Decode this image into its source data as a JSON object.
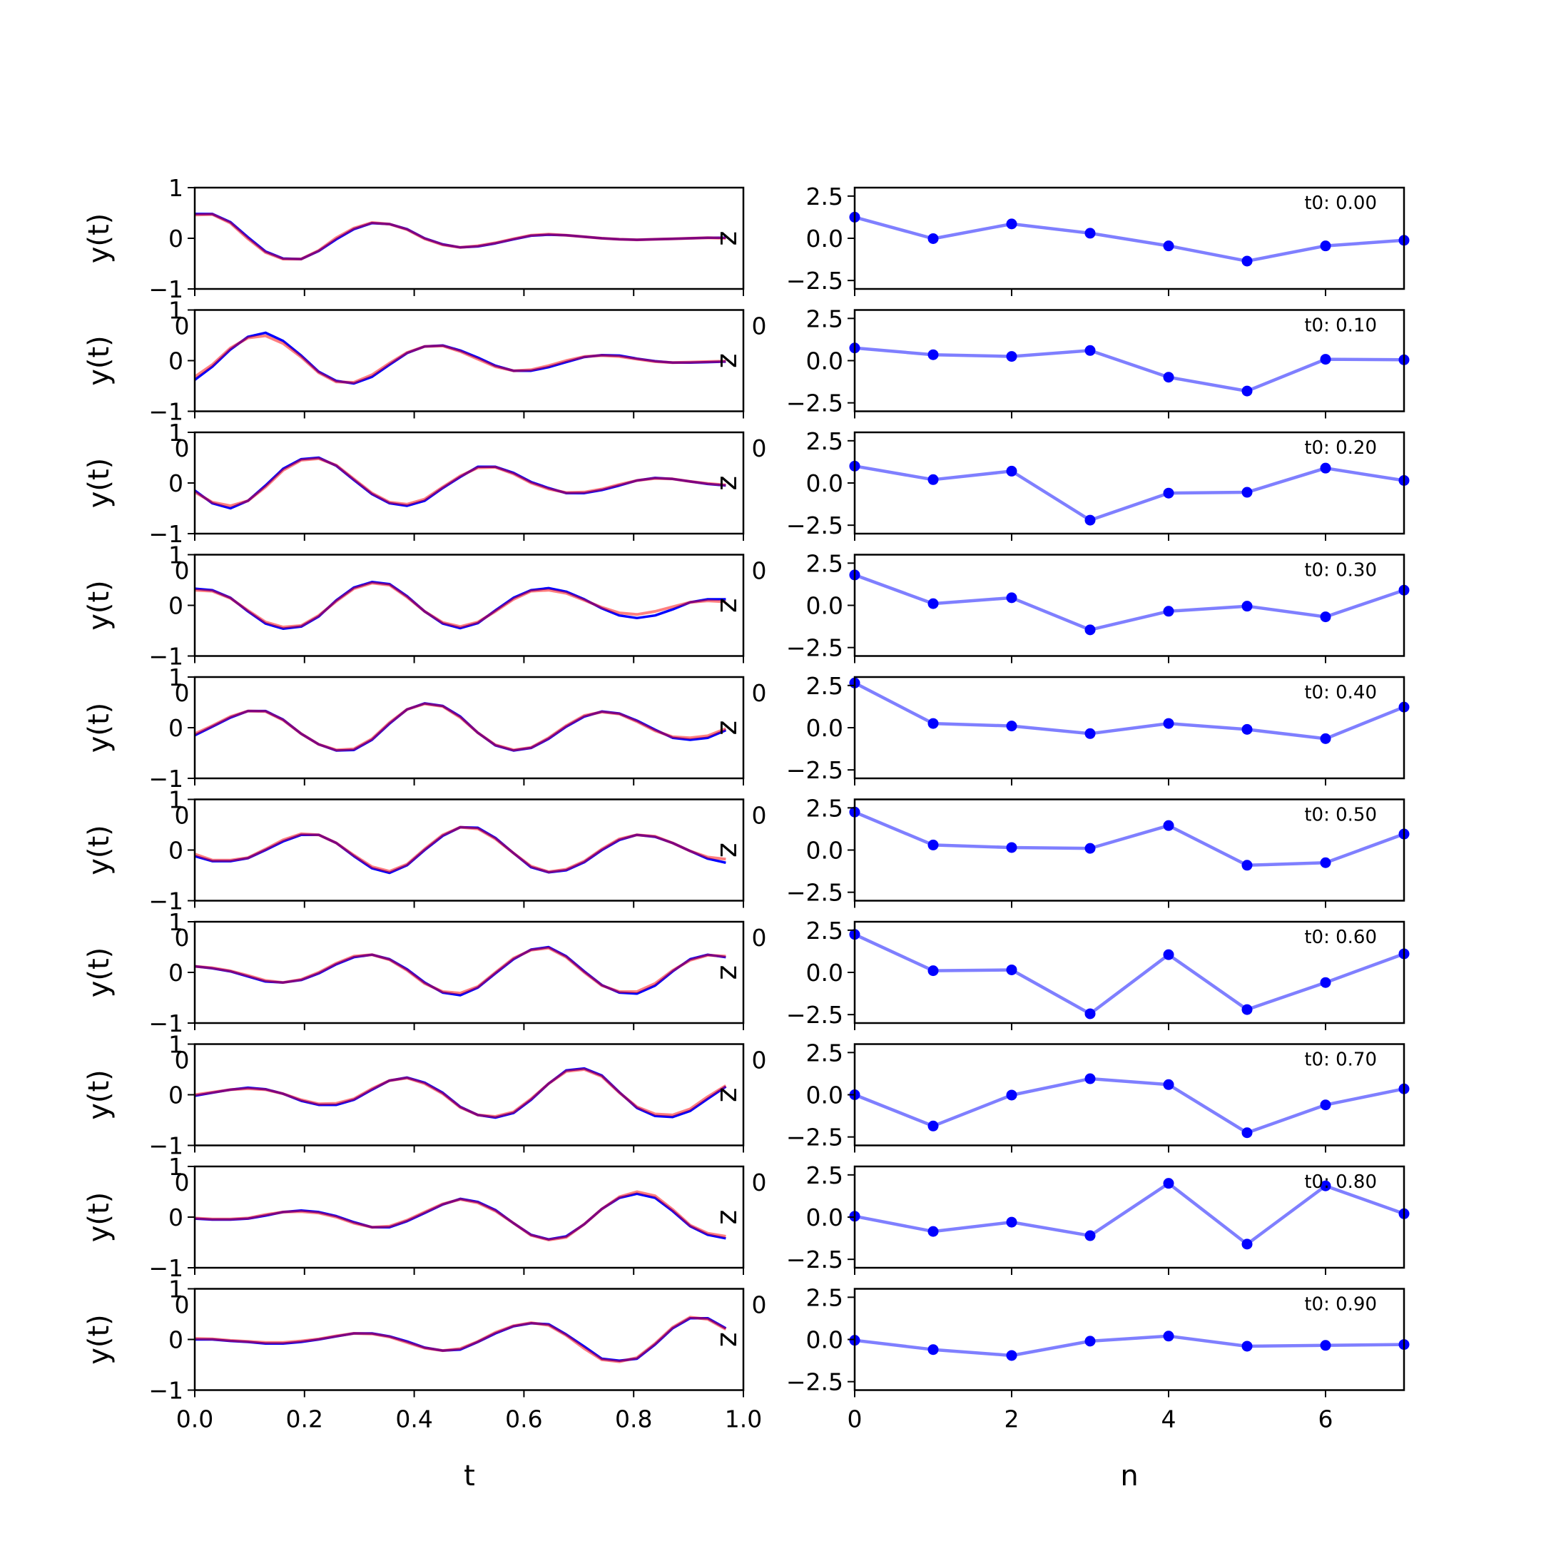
{
  "chart_data": {
    "type": "line",
    "colors": {
      "signal_a": "#0000ff",
      "signal_b": "#ff0000",
      "coeff": "#0000ff",
      "axes": "#000000"
    },
    "left_panels": {
      "ylabel": "y(t)",
      "xlabel": "t",
      "side_label": "z",
      "xlim": [
        0.0,
        1.0
      ],
      "ylim": [
        -1,
        1
      ],
      "xticks": [
        "0.0",
        "0.2",
        "0.4",
        "0.6",
        "0.8",
        "1.0"
      ],
      "yticks": [
        "−1",
        "0",
        "1"
      ],
      "stray_tick_label": "0",
      "t": [
        0.0,
        0.032,
        0.065,
        0.097,
        0.129,
        0.161,
        0.194,
        0.226,
        0.258,
        0.29,
        0.323,
        0.355,
        0.387,
        0.419,
        0.452,
        0.484,
        0.516,
        0.548,
        0.581,
        0.613,
        0.645,
        0.677,
        0.71,
        0.742,
        0.774,
        0.806,
        0.839,
        0.871,
        0.903,
        0.935,
        0.968
      ],
      "series": [
        {
          "blue": [
            0.48,
            0.48,
            0.32,
            0.02,
            -0.26,
            -0.4,
            -0.41,
            -0.25,
            -0.02,
            0.18,
            0.3,
            0.28,
            0.18,
            0.0,
            -0.12,
            -0.18,
            -0.16,
            -0.1,
            -0.02,
            0.05,
            0.07,
            0.06,
            0.03,
            0.0,
            -0.02,
            -0.03,
            -0.02,
            -0.01,
            0.0,
            0.01,
            0.01
          ],
          "red": [
            0.46,
            0.47,
            0.3,
            -0.01,
            -0.28,
            -0.41,
            -0.41,
            -0.24,
            0.01,
            0.2,
            0.31,
            0.28,
            0.17,
            -0.01,
            -0.13,
            -0.18,
            -0.15,
            -0.09,
            -0.01,
            0.06,
            0.08,
            0.06,
            0.03,
            0.0,
            -0.02,
            -0.03,
            -0.02,
            -0.01,
            0.0,
            0.01,
            0.0
          ]
        },
        {
          "blue": [
            -0.38,
            -0.12,
            0.22,
            0.47,
            0.55,
            0.39,
            0.1,
            -0.22,
            -0.4,
            -0.45,
            -0.32,
            -0.08,
            0.15,
            0.28,
            0.3,
            0.2,
            0.06,
            -0.1,
            -0.2,
            -0.2,
            -0.13,
            -0.03,
            0.07,
            0.11,
            0.1,
            0.04,
            -0.01,
            -0.04,
            -0.04,
            -0.03,
            -0.02
          ],
          "red": [
            -0.32,
            -0.08,
            0.25,
            0.45,
            0.49,
            0.34,
            0.07,
            -0.24,
            -0.42,
            -0.43,
            -0.28,
            -0.05,
            0.16,
            0.28,
            0.29,
            0.18,
            0.03,
            -0.12,
            -0.2,
            -0.18,
            -0.1,
            0.0,
            0.08,
            0.1,
            0.08,
            0.03,
            -0.02,
            -0.04,
            -0.03,
            -0.02,
            -0.01
          ]
        },
        {
          "blue": [
            -0.15,
            -0.4,
            -0.5,
            -0.35,
            -0.05,
            0.28,
            0.47,
            0.5,
            0.34,
            0.06,
            -0.22,
            -0.4,
            -0.45,
            -0.35,
            -0.1,
            0.12,
            0.32,
            0.32,
            0.2,
            0.02,
            -0.1,
            -0.2,
            -0.2,
            -0.14,
            -0.05,
            0.05,
            0.1,
            0.08,
            0.03,
            -0.02,
            -0.05
          ],
          "red": [
            -0.18,
            -0.38,
            -0.45,
            -0.35,
            -0.08,
            0.25,
            0.45,
            0.48,
            0.35,
            0.08,
            -0.2,
            -0.38,
            -0.42,
            -0.32,
            -0.08,
            0.14,
            0.3,
            0.31,
            0.18,
            0.0,
            -0.12,
            -0.19,
            -0.18,
            -0.12,
            -0.03,
            0.05,
            0.09,
            0.08,
            0.03,
            -0.01,
            -0.04
          ]
        },
        {
          "blue": [
            0.33,
            0.3,
            0.15,
            -0.12,
            -0.36,
            -0.46,
            -0.42,
            -0.22,
            0.1,
            0.35,
            0.46,
            0.42,
            0.18,
            -0.12,
            -0.36,
            -0.45,
            -0.35,
            -0.1,
            0.15,
            0.3,
            0.34,
            0.27,
            0.12,
            -0.06,
            -0.2,
            -0.25,
            -0.2,
            -0.08,
            0.06,
            0.12,
            0.12
          ],
          "red": [
            0.3,
            0.28,
            0.14,
            -0.1,
            -0.33,
            -0.43,
            -0.4,
            -0.2,
            0.08,
            0.33,
            0.44,
            0.4,
            0.16,
            -0.12,
            -0.34,
            -0.42,
            -0.33,
            -0.12,
            0.12,
            0.28,
            0.3,
            0.24,
            0.1,
            -0.04,
            -0.15,
            -0.18,
            -0.12,
            -0.03,
            0.06,
            0.09,
            0.07
          ]
        },
        {
          "blue": [
            -0.15,
            0.02,
            0.2,
            0.33,
            0.33,
            0.16,
            -0.12,
            -0.33,
            -0.45,
            -0.44,
            -0.24,
            0.08,
            0.36,
            0.48,
            0.43,
            0.22,
            -0.1,
            -0.35,
            -0.45,
            -0.4,
            -0.22,
            0.02,
            0.22,
            0.32,
            0.28,
            0.14,
            -0.04,
            -0.2,
            -0.24,
            -0.2,
            -0.05
          ],
          "red": [
            -0.12,
            0.04,
            0.22,
            0.33,
            0.32,
            0.15,
            -0.12,
            -0.33,
            -0.44,
            -0.42,
            -0.22,
            0.1,
            0.36,
            0.47,
            0.42,
            0.2,
            -0.1,
            -0.34,
            -0.44,
            -0.39,
            -0.2,
            0.04,
            0.24,
            0.31,
            0.27,
            0.12,
            -0.06,
            -0.18,
            -0.2,
            -0.16,
            -0.02
          ]
        },
        {
          "blue": [
            -0.12,
            -0.22,
            -0.22,
            -0.16,
            0.0,
            0.17,
            0.3,
            0.3,
            0.14,
            -0.12,
            -0.36,
            -0.45,
            -0.3,
            0.0,
            0.28,
            0.45,
            0.44,
            0.24,
            -0.06,
            -0.34,
            -0.44,
            -0.4,
            -0.24,
            0.0,
            0.2,
            0.3,
            0.26,
            0.14,
            -0.02,
            -0.17,
            -0.25
          ],
          "red": [
            -0.08,
            -0.2,
            -0.2,
            -0.15,
            0.02,
            0.2,
            0.32,
            0.3,
            0.14,
            -0.1,
            -0.33,
            -0.42,
            -0.28,
            0.02,
            0.3,
            0.45,
            0.42,
            0.22,
            -0.06,
            -0.32,
            -0.43,
            -0.38,
            -0.22,
            0.02,
            0.22,
            0.3,
            0.27,
            0.14,
            -0.02,
            -0.14,
            -0.18
          ]
        },
        {
          "blue": [
            0.12,
            0.08,
            0.02,
            -0.08,
            -0.18,
            -0.2,
            -0.15,
            -0.02,
            0.16,
            0.3,
            0.35,
            0.26,
            0.06,
            -0.2,
            -0.4,
            -0.45,
            -0.3,
            -0.02,
            0.26,
            0.45,
            0.5,
            0.32,
            0.02,
            -0.25,
            -0.4,
            -0.42,
            -0.26,
            0.02,
            0.26,
            0.35,
            0.3
          ],
          "red": [
            0.12,
            0.09,
            0.03,
            -0.06,
            -0.16,
            -0.2,
            -0.14,
            0.0,
            0.18,
            0.32,
            0.35,
            0.25,
            0.04,
            -0.22,
            -0.38,
            -0.41,
            -0.28,
            0.0,
            0.28,
            0.44,
            0.48,
            0.3,
            0.0,
            -0.26,
            -0.38,
            -0.38,
            -0.22,
            0.04,
            0.24,
            0.34,
            0.32
          ]
        },
        {
          "blue": [
            -0.02,
            0.04,
            0.1,
            0.14,
            0.11,
            0.02,
            -0.12,
            -0.2,
            -0.2,
            -0.1,
            0.1,
            0.28,
            0.34,
            0.24,
            0.04,
            -0.24,
            -0.4,
            -0.45,
            -0.36,
            -0.1,
            0.22,
            0.48,
            0.52,
            0.38,
            0.05,
            -0.26,
            -0.42,
            -0.44,
            -0.32,
            -0.08,
            0.16
          ],
          "red": [
            0.0,
            0.05,
            0.1,
            0.12,
            0.1,
            0.02,
            -0.1,
            -0.18,
            -0.17,
            -0.08,
            0.12,
            0.28,
            0.33,
            0.22,
            0.02,
            -0.25,
            -0.4,
            -0.43,
            -0.34,
            -0.08,
            0.22,
            0.46,
            0.5,
            0.36,
            0.04,
            -0.24,
            -0.38,
            -0.4,
            -0.28,
            -0.04,
            0.18
          ]
        },
        {
          "blue": [
            -0.03,
            -0.05,
            -0.05,
            -0.03,
            0.03,
            0.1,
            0.13,
            0.1,
            0.02,
            -0.1,
            -0.2,
            -0.2,
            -0.08,
            0.08,
            0.25,
            0.36,
            0.3,
            0.14,
            -0.12,
            -0.35,
            -0.44,
            -0.38,
            -0.14,
            0.16,
            0.38,
            0.46,
            0.38,
            0.12,
            -0.18,
            -0.35,
            -0.42
          ],
          "red": [
            -0.02,
            -0.04,
            -0.04,
            -0.02,
            0.05,
            0.1,
            0.11,
            0.08,
            0.0,
            -0.12,
            -0.2,
            -0.18,
            -0.06,
            0.1,
            0.26,
            0.35,
            0.28,
            0.12,
            -0.12,
            -0.36,
            -0.45,
            -0.4,
            -0.14,
            0.16,
            0.4,
            0.5,
            0.42,
            0.15,
            -0.16,
            -0.32,
            -0.38
          ]
        },
        {
          "blue": [
            0.0,
            0.0,
            -0.03,
            -0.05,
            -0.08,
            -0.08,
            -0.05,
            0.0,
            0.06,
            0.12,
            0.12,
            0.06,
            -0.04,
            -0.16,
            -0.22,
            -0.2,
            -0.05,
            0.12,
            0.26,
            0.32,
            0.3,
            0.1,
            -0.14,
            -0.38,
            -0.42,
            -0.38,
            -0.1,
            0.22,
            0.42,
            0.42,
            0.22
          ],
          "red": [
            0.02,
            0.01,
            -0.02,
            -0.04,
            -0.06,
            -0.06,
            -0.03,
            0.01,
            0.07,
            0.12,
            0.11,
            0.05,
            -0.06,
            -0.17,
            -0.22,
            -0.18,
            -0.04,
            0.14,
            0.27,
            0.33,
            0.28,
            0.08,
            -0.18,
            -0.4,
            -0.44,
            -0.36,
            -0.08,
            0.24,
            0.44,
            0.4,
            0.2
          ]
        }
      ]
    },
    "right_panels": {
      "xlabel": "n",
      "xlim": [
        0,
        7
      ],
      "ylim": [
        -3.0,
        3.0
      ],
      "xticks": [
        "0",
        "2",
        "4",
        "6"
      ],
      "yticks": [
        "2.5",
        "0.0",
        "−2.5"
      ],
      "stray_tick_label": "0",
      "n": [
        0,
        1,
        2,
        3,
        4,
        5,
        6,
        7
      ],
      "series": [
        {
          "label": "t0: 0.00",
          "values": [
            1.25,
            -0.02,
            0.85,
            0.3,
            -0.45,
            -1.35,
            -0.45,
            -0.12
          ]
        },
        {
          "label": "t0: 0.10",
          "values": [
            0.75,
            0.35,
            0.25,
            0.6,
            -0.98,
            -1.8,
            0.08,
            0.05
          ]
        },
        {
          "label": "t0: 0.20",
          "values": [
            1.0,
            0.2,
            0.7,
            -2.2,
            -0.6,
            -0.55,
            0.88,
            0.15
          ]
        },
        {
          "label": "t0: 0.30",
          "values": [
            1.8,
            0.1,
            0.45,
            -1.45,
            -0.35,
            -0.05,
            -0.68,
            0.9
          ]
        },
        {
          "label": "t0: 0.40",
          "values": [
            2.65,
            0.25,
            0.1,
            -0.35,
            0.25,
            -0.1,
            -0.65,
            1.22
          ]
        },
        {
          "label": "t0: 0.50",
          "values": [
            2.25,
            0.3,
            0.15,
            0.1,
            1.45,
            -0.9,
            -0.75,
            0.95
          ]
        },
        {
          "label": "t0: 0.60",
          "values": [
            2.25,
            0.1,
            0.15,
            -2.45,
            1.05,
            -2.2,
            -0.6,
            1.1
          ]
        },
        {
          "label": "t0: 0.70",
          "values": [
            0.0,
            -1.85,
            -0.02,
            0.95,
            0.6,
            -2.25,
            -0.6,
            0.35
          ]
        },
        {
          "label": "t0: 0.80",
          "values": [
            0.05,
            -0.85,
            -0.3,
            -1.1,
            2.0,
            -1.6,
            1.85,
            0.2
          ]
        },
        {
          "label": "t0: 0.90",
          "values": [
            -0.05,
            -0.6,
            -0.95,
            -0.1,
            0.2,
            -0.4,
            -0.35,
            -0.3
          ]
        }
      ]
    }
  }
}
